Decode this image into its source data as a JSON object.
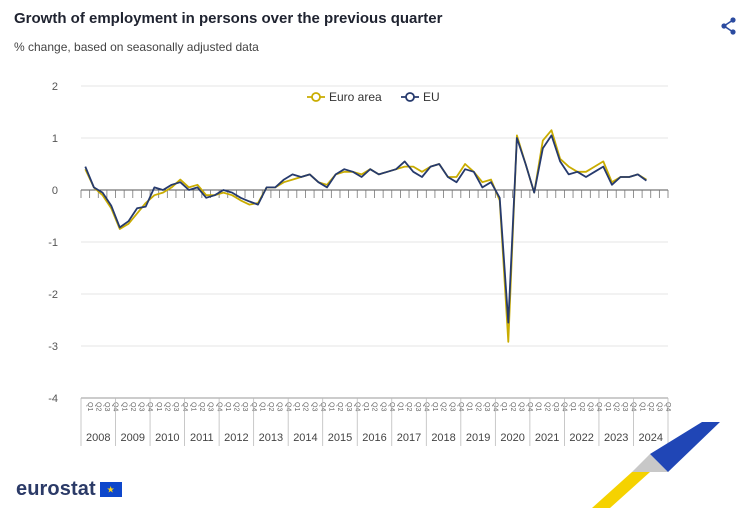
{
  "header": {
    "title": "Growth of employment in persons over the previous quarter",
    "subtitle": "% change, based on seasonally adjusted data"
  },
  "footer": {
    "logo_text": "eurostat"
  },
  "chart_data": {
    "type": "line",
    "title": "Growth of employment in persons over the previous quarter",
    "subtitle": "% change, based on seasonally adjusted data",
    "xlabel": "",
    "ylabel": "",
    "ylim": [
      -4,
      2
    ],
    "yticks": [
      2,
      1,
      0,
      -1,
      -2,
      -3,
      -4
    ],
    "grid": true,
    "legend_position": "top-center",
    "quarter_labels": [
      "Q1",
      "Q2",
      "Q3",
      "Q4"
    ],
    "years": [
      "2008",
      "2009",
      "2010",
      "2011",
      "2012",
      "2013",
      "2014",
      "2015",
      "2016",
      "2017",
      "2018",
      "2019",
      "2020",
      "2021",
      "2022",
      "2023",
      "2024"
    ],
    "series": [
      {
        "name": "Euro area",
        "color": "#c9ac00",
        "values": [
          0.4,
          0.05,
          -0.1,
          -0.35,
          -0.75,
          -0.65,
          -0.45,
          -0.25,
          -0.1,
          -0.05,
          0.05,
          0.2,
          0.05,
          0.1,
          -0.1,
          -0.1,
          -0.05,
          -0.1,
          -0.2,
          -0.28,
          -0.25,
          0.05,
          0.05,
          0.15,
          0.2,
          0.25,
          0.3,
          0.15,
          0.1,
          0.3,
          0.35,
          0.35,
          0.3,
          0.4,
          0.3,
          0.35,
          0.4,
          0.45,
          0.45,
          0.35,
          0.45,
          0.5,
          0.25,
          0.25,
          0.5,
          0.35,
          0.15,
          0.2,
          -0.2,
          -2.92,
          1.05,
          0.5,
          -0.05,
          0.95,
          1.15,
          0.6,
          0.45,
          0.35,
          0.35,
          0.45,
          0.55,
          0.15,
          0.25,
          0.25,
          0.3,
          0.2
        ]
      },
      {
        "name": "EU",
        "color": "#263a6d",
        "values": [
          0.45,
          0.05,
          -0.05,
          -0.3,
          -0.72,
          -0.6,
          -0.35,
          -0.32,
          0.05,
          0.0,
          0.1,
          0.15,
          0.0,
          0.05,
          -0.15,
          -0.1,
          0.0,
          -0.05,
          -0.15,
          -0.22,
          -0.28,
          0.05,
          0.05,
          0.2,
          0.3,
          0.25,
          0.3,
          0.15,
          0.05,
          0.3,
          0.4,
          0.35,
          0.25,
          0.4,
          0.3,
          0.35,
          0.4,
          0.55,
          0.35,
          0.25,
          0.45,
          0.5,
          0.25,
          0.15,
          0.4,
          0.35,
          0.05,
          0.15,
          -0.15,
          -2.55,
          1.0,
          0.5,
          -0.05,
          0.8,
          1.05,
          0.55,
          0.3,
          0.35,
          0.25,
          0.35,
          0.45,
          0.1,
          0.25,
          0.25,
          0.3,
          0.18
        ]
      }
    ]
  }
}
